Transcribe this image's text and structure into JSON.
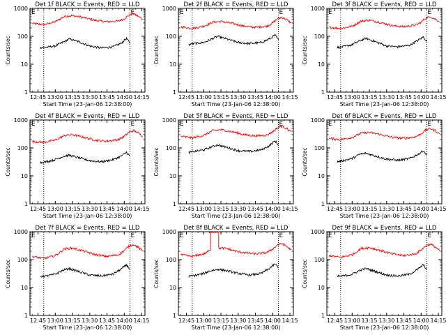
{
  "common": {
    "ylabel": "Counts/sec",
    "xlabel": "Start Time (23-Jan-06 12:38:00)",
    "yticks": [
      "1",
      "10",
      "100",
      "1000"
    ],
    "xticks": [
      "12:45",
      "13:00",
      "13:15",
      "13:30",
      "13:45",
      "14:00",
      "14:15"
    ],
    "marker_label": "E",
    "colors": {
      "events": "#000000",
      "lld": "#ff0000",
      "axis": "#000000"
    }
  },
  "chart_data": [
    {
      "type": "line",
      "title": "Det 1f BLACK = Events, RED = LLD",
      "ylim": [
        1,
        1000
      ],
      "yscale": "log",
      "xlim": [
        "12:38",
        "14:18"
      ],
      "markers": [
        "12:50",
        "14:05"
      ],
      "series": [
        {
          "key": "lld",
          "x": [
            "12:40",
            "12:50",
            "13:00",
            "13:08",
            "13:15",
            "13:25",
            "13:35",
            "13:45",
            "13:55",
            "14:00",
            "14:04",
            "14:08",
            "14:12",
            "14:16"
          ],
          "values": [
            290,
            260,
            330,
            520,
            550,
            470,
            370,
            330,
            350,
            430,
            560,
            650,
            520,
            420
          ]
        },
        {
          "key": "events",
          "x": [
            "12:47",
            "12:52",
            "13:00",
            "13:07",
            "13:12",
            "13:20",
            "13:30",
            "13:40",
            "13:50",
            "13:57",
            "14:02",
            "14:05"
          ],
          "values": [
            40,
            40,
            45,
            62,
            80,
            65,
            45,
            38,
            42,
            55,
            85,
            55
          ]
        }
      ]
    },
    {
      "type": "line",
      "title": "Det 2f BLACK = Events, RED = LLD",
      "ylim": [
        1,
        1000
      ],
      "yscale": "log",
      "xlim": [
        "12:38",
        "14:18"
      ],
      "markers": [
        "12:50",
        "14:05"
      ],
      "series": [
        {
          "key": "lld",
          "x": [
            "12:40",
            "12:50",
            "13:00",
            "13:08",
            "13:15",
            "13:25",
            "13:35",
            "13:45",
            "13:55",
            "14:00",
            "14:04",
            "14:08",
            "14:12",
            "14:16"
          ],
          "values": [
            220,
            190,
            230,
            320,
            340,
            290,
            230,
            210,
            230,
            300,
            420,
            480,
            400,
            300
          ]
        },
        {
          "key": "events",
          "x": [
            "12:47",
            "12:52",
            "13:00",
            "13:07",
            "13:12",
            "13:20",
            "13:30",
            "13:40",
            "13:50",
            "13:57",
            "14:02",
            "14:05"
          ],
          "values": [
            50,
            55,
            60,
            80,
            100,
            80,
            60,
            55,
            60,
            80,
            110,
            75
          ]
        }
      ]
    },
    {
      "type": "line",
      "title": "Det 3f BLACK = Events, RED = LLD",
      "ylim": [
        1,
        1000
      ],
      "yscale": "log",
      "xlim": [
        "12:38",
        "14:18"
      ],
      "markers": [
        "12:50",
        "14:05"
      ],
      "series": [
        {
          "key": "lld",
          "x": [
            "12:40",
            "12:50",
            "13:00",
            "13:08",
            "13:15",
            "13:25",
            "13:35",
            "13:45",
            "13:55",
            "14:00",
            "14:04",
            "14:08",
            "14:12",
            "14:16"
          ],
          "values": [
            210,
            190,
            230,
            350,
            380,
            310,
            240,
            220,
            250,
            320,
            450,
            500,
            420,
            330
          ]
        },
        {
          "key": "events",
          "x": [
            "12:47",
            "12:52",
            "13:00",
            "13:07",
            "13:12",
            "13:20",
            "13:30",
            "13:40",
            "13:50",
            "13:57",
            "14:02",
            "14:05"
          ],
          "values": [
            40,
            42,
            50,
            70,
            85,
            65,
            45,
            42,
            48,
            70,
            95,
            65
          ]
        }
      ]
    },
    {
      "type": "line",
      "title": "Det 4f BLACK = Events, RED = LLD",
      "ylim": [
        1,
        1000
      ],
      "yscale": "log",
      "xlim": [
        "12:38",
        "14:18"
      ],
      "markers": [
        "12:50",
        "14:05"
      ],
      "series": [
        {
          "key": "lld",
          "x": [
            "12:40",
            "12:50",
            "13:00",
            "13:08",
            "13:15",
            "13:25",
            "13:35",
            "13:45",
            "13:55",
            "14:00",
            "14:04",
            "14:08",
            "14:12",
            "14:16"
          ],
          "values": [
            170,
            160,
            190,
            280,
            300,
            240,
            190,
            175,
            200,
            260,
            360,
            420,
            350,
            260
          ]
        },
        {
          "key": "events",
          "x": [
            "12:47",
            "12:52",
            "13:00",
            "13:07",
            "13:12",
            "13:20",
            "13:30",
            "13:40",
            "13:50",
            "13:57",
            "14:02",
            "14:05"
          ],
          "values": [
            30,
            32,
            38,
            50,
            55,
            45,
            35,
            32,
            38,
            50,
            70,
            50
          ]
        }
      ]
    },
    {
      "type": "line",
      "title": "Det 5f BLACK = Events, RED = LLD",
      "ylim": [
        1,
        1000
      ],
      "yscale": "log",
      "xlim": [
        "12:38",
        "14:18"
      ],
      "markers": [
        "12:50",
        "14:05"
      ],
      "series": [
        {
          "key": "lld",
          "x": [
            "12:40",
            "12:50",
            "13:00",
            "13:08",
            "13:15",
            "13:25",
            "13:35",
            "13:45",
            "13:55",
            "14:00",
            "14:04",
            "14:08",
            "14:12",
            "14:16"
          ],
          "values": [
            260,
            230,
            280,
            420,
            450,
            380,
            300,
            270,
            290,
            380,
            520,
            600,
            500,
            380
          ]
        },
        {
          "key": "events",
          "x": [
            "12:47",
            "12:52",
            "13:00",
            "13:07",
            "13:12",
            "13:20",
            "13:30",
            "13:40",
            "13:50",
            "13:57",
            "14:02",
            "14:05"
          ],
          "values": [
            70,
            75,
            85,
            110,
            130,
            105,
            80,
            75,
            85,
            120,
            180,
            130
          ]
        }
      ]
    },
    {
      "type": "line",
      "title": "Det 6f BLACK = Events, RED = LLD",
      "ylim": [
        1,
        1000
      ],
      "yscale": "log",
      "xlim": [
        "12:38",
        "14:18"
      ],
      "markers": [
        "12:50",
        "14:05"
      ],
      "series": [
        {
          "key": "lld",
          "x": [
            "12:40",
            "12:50",
            "13:00",
            "13:08",
            "13:15",
            "13:25",
            "13:35",
            "13:45",
            "13:55",
            "14:00",
            "14:04",
            "14:08",
            "14:12",
            "14:16"
          ],
          "values": [
            220,
            200,
            240,
            340,
            360,
            300,
            240,
            220,
            250,
            320,
            440,
            500,
            420,
            320
          ]
        },
        {
          "key": "events",
          "x": [
            "12:47",
            "12:52",
            "13:00",
            "13:07",
            "13:12",
            "13:20",
            "13:30",
            "13:40",
            "13:50",
            "13:57",
            "14:02",
            "14:05"
          ],
          "values": [
            32,
            35,
            42,
            60,
            65,
            52,
            40,
            36,
            42,
            58,
            80,
            55
          ]
        }
      ]
    },
    {
      "type": "line",
      "title": "Det 7f BLACK = Events, RED = LLD",
      "ylim": [
        1,
        1000
      ],
      "yscale": "log",
      "xlim": [
        "12:38",
        "14:18"
      ],
      "markers": [
        "12:50",
        "14:05"
      ],
      "series": [
        {
          "key": "lld",
          "x": [
            "12:40",
            "12:50",
            "13:00",
            "13:08",
            "13:15",
            "13:25",
            "13:35",
            "13:45",
            "13:55",
            "14:00",
            "14:04",
            "14:08",
            "14:12",
            "14:16"
          ],
          "values": [
            130,
            110,
            140,
            240,
            260,
            200,
            150,
            130,
            150,
            210,
            300,
            350,
            280,
            200
          ]
        },
        {
          "key": "events",
          "x": [
            "12:47",
            "12:52",
            "13:00",
            "13:07",
            "13:12",
            "13:20",
            "13:30",
            "13:40",
            "13:50",
            "13:57",
            "14:02",
            "14:05"
          ],
          "values": [
            25,
            26,
            30,
            42,
            48,
            38,
            28,
            26,
            30,
            45,
            65,
            45
          ]
        }
      ]
    },
    {
      "type": "line",
      "title": "Det 8f BLACK = Events, RED = LLD",
      "ylim": [
        1,
        1000
      ],
      "yscale": "log",
      "xlim": [
        "12:38",
        "14:18"
      ],
      "markers": [
        "12:50",
        "14:05"
      ],
      "series": [
        {
          "key": "lld",
          "x": [
            "12:40",
            "12:50",
            "13:00",
            "13:06",
            "13:06",
            "13:13",
            "13:13",
            "13:20",
            "13:30",
            "13:45",
            "13:55",
            "14:00",
            "14:04",
            "14:08",
            "14:12",
            "14:16"
          ],
          "values": [
            150,
            130,
            160,
            220,
            1000,
            1000,
            260,
            250,
            190,
            160,
            180,
            240,
            330,
            380,
            300,
            220
          ]
        },
        {
          "key": "events",
          "x": [
            "12:47",
            "12:52",
            "13:00",
            "13:06",
            "13:13",
            "13:20",
            "13:30",
            "13:40",
            "13:50",
            "13:57",
            "14:02",
            "14:05"
          ],
          "values": [
            25,
            27,
            32,
            40,
            45,
            40,
            32,
            28,
            32,
            48,
            70,
            50
          ]
        }
      ]
    },
    {
      "type": "line",
      "title": "Det 9f BLACK = Events, RED = LLD",
      "ylim": [
        1,
        1000
      ],
      "yscale": "log",
      "xlim": [
        "12:38",
        "14:18"
      ],
      "markers": [
        "12:50",
        "14:05"
      ],
      "series": [
        {
          "key": "lld",
          "x": [
            "12:40",
            "12:50",
            "13:00",
            "13:08",
            "13:15",
            "13:25",
            "13:35",
            "13:45",
            "13:55",
            "14:00",
            "14:04",
            "14:08",
            "14:12",
            "14:16"
          ],
          "values": [
            140,
            120,
            150,
            250,
            270,
            210,
            160,
            140,
            160,
            220,
            310,
            360,
            290,
            210
          ]
        },
        {
          "key": "events",
          "x": [
            "12:47",
            "12:52",
            "13:00",
            "13:07",
            "13:12",
            "13:20",
            "13:30",
            "13:40",
            "13:50",
            "13:57",
            "14:02",
            "14:05"
          ],
          "values": [
            25,
            26,
            30,
            42,
            48,
            38,
            28,
            26,
            30,
            45,
            65,
            45
          ]
        }
      ]
    }
  ]
}
